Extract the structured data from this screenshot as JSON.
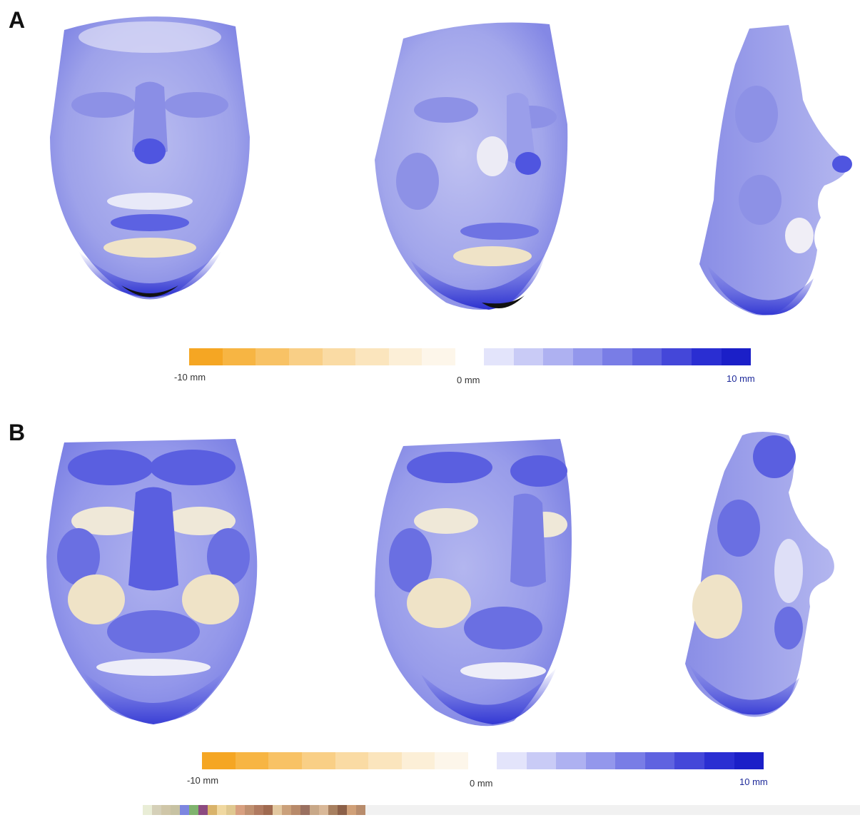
{
  "panels": [
    {
      "label": "A",
      "scale": {
        "min_label": "-10 mm",
        "mid_label": "0 mm",
        "max_label": "10 mm"
      }
    },
    {
      "label": "B",
      "scale": {
        "min_label": "-10 mm",
        "mid_label": "0 mm",
        "max_label": "10 mm"
      }
    }
  ],
  "colors": {
    "negative_scale": [
      "#f5a623",
      "#f7b543",
      "#f8c265",
      "#f9cf86",
      "#fadba4",
      "#fbe5bd",
      "#fcefd7",
      "#fdf6ea"
    ],
    "positive_scale": [
      "#e3e4fb",
      "#c9cbf6",
      "#aeb1f1",
      "#9397ec",
      "#797de6",
      "#5f63e0",
      "#4447d9",
      "#2a2ed2",
      "#1b1fc8"
    ],
    "face_base": "#a8acec",
    "face_deep": "#4f55e0",
    "face_warm": "#efe3c7"
  }
}
